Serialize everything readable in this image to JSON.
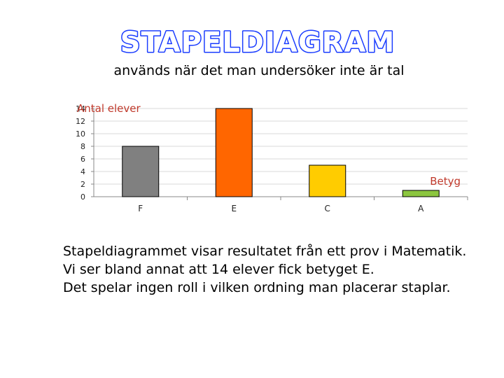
{
  "slide": {
    "title": "STAPELDIAGRAM",
    "subtitle": "används när det man undersöker inte är tal",
    "body_lines": [
      "Stapeldiagrammet visar resultatet från ett prov i Matematik.",
      "Vi ser bland annat att 14 elever fick betyget E.",
      "Det spelar ingen roll i vilken ordning man placerar staplar."
    ]
  },
  "colors": {
    "title_fill": "#ffffff",
    "title_stroke": "#1a3cff",
    "axis_title": "#c0392b",
    "grid": "#d9d9d9"
  },
  "chart_data": {
    "type": "bar",
    "categories": [
      "F",
      "E",
      "C",
      "A"
    ],
    "values": [
      8,
      14,
      5,
      1
    ],
    "bar_colors": [
      "#808080",
      "#ff6600",
      "#ffcc00",
      "#8cc63f"
    ],
    "ylabel": "Antal elever",
    "xlabel": "Betyg",
    "ylim": [
      0,
      14
    ],
    "yticks": [
      0,
      2,
      4,
      6,
      8,
      10,
      12,
      14
    ],
    "grid": true
  }
}
